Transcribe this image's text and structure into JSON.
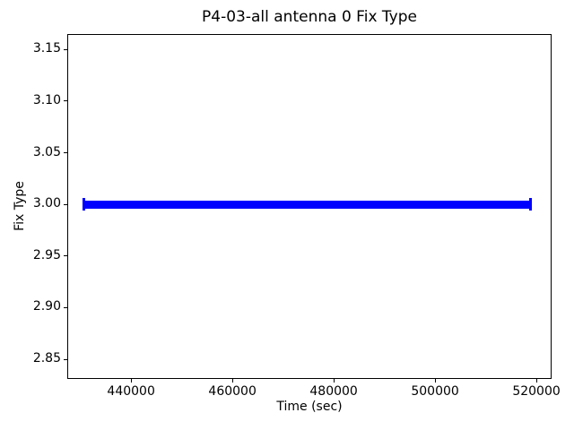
{
  "figure": {
    "background": "#ffffff",
    "spine_color": "#000000",
    "text_color": "#000000"
  },
  "chart_data": {
    "type": "line",
    "title": "P4-03-all antenna 0 Fix Type",
    "xlabel": "Time (sec)",
    "ylabel": "Fix Type",
    "xlim": [
      427400,
      523000
    ],
    "ylim": [
      2.831,
      3.165
    ],
    "grid": false,
    "legend_position": "none",
    "xticks": [
      {
        "value": 440000,
        "label": "440000"
      },
      {
        "value": 460000,
        "label": "460000"
      },
      {
        "value": 480000,
        "label": "480000"
      },
      {
        "value": 500000,
        "label": "500000"
      },
      {
        "value": 520000,
        "label": "520000"
      }
    ],
    "yticks": [
      {
        "value": 2.85,
        "label": "2.85"
      },
      {
        "value": 2.9,
        "label": "2.90"
      },
      {
        "value": 2.95,
        "label": "2.95"
      },
      {
        "value": 3.0,
        "label": "3.00"
      },
      {
        "value": 3.05,
        "label": "3.05"
      },
      {
        "value": 3.1,
        "label": "3.10"
      },
      {
        "value": 3.15,
        "label": "3.15"
      }
    ],
    "series": [
      {
        "name": "fix-type",
        "color": "#0000ff",
        "marker": "+",
        "y_value": 3.0,
        "x_start": 430700,
        "x_end": 518900
      }
    ]
  }
}
